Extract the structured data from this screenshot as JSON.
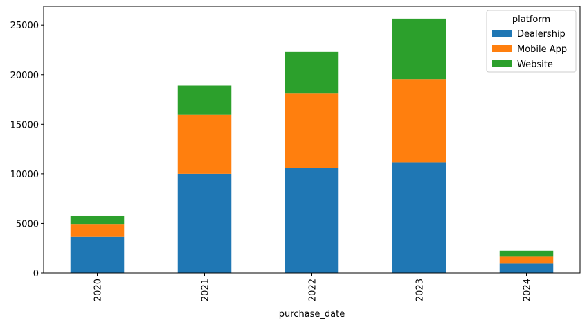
{
  "chart_data": {
    "type": "bar",
    "stacked": true,
    "categories": [
      "2020",
      "2021",
      "2022",
      "2023",
      "2024"
    ],
    "series": [
      {
        "name": "Dealership",
        "color": "#1f77b4",
        "values": [
          3650,
          10000,
          10600,
          11150,
          950
        ]
      },
      {
        "name": "Mobile App",
        "color": "#ff7f0e",
        "values": [
          1300,
          5950,
          7550,
          8400,
          700
        ]
      },
      {
        "name": "Website",
        "color": "#2ca02c",
        "values": [
          850,
          2950,
          4150,
          6100,
          600
        ]
      }
    ],
    "xlabel": "purchase_date",
    "ylabel": "",
    "ylim": [
      0,
      26900
    ],
    "yticks": [
      0,
      5000,
      10000,
      15000,
      20000,
      25000
    ],
    "legend": {
      "title": "platform",
      "placement": "top-right"
    },
    "grid": false
  }
}
